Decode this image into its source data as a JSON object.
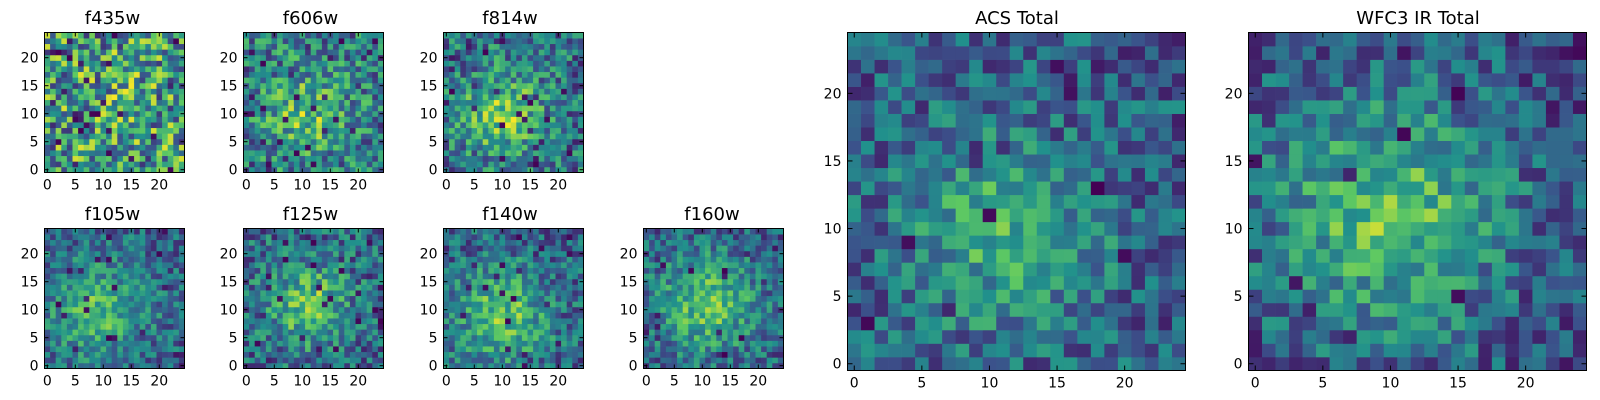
{
  "chart_data": {
    "type": "heatmap",
    "colormap": "viridis",
    "grid": false,
    "panels": [
      {
        "title": "f435w",
        "nx": 25,
        "ny": 25,
        "xlim": [
          -0.5,
          24.5
        ],
        "ylim": [
          -0.5,
          24.5
        ],
        "xticks": [
          0,
          5,
          10,
          15,
          20
        ],
        "yticks": [
          0,
          5,
          10,
          15,
          20
        ],
        "seed": 11,
        "blob": 0.05,
        "center": [
          12,
          12
        ],
        "sigma": 6,
        "noise": 0.55,
        "spread": 0.4,
        "lowfrac": 0.05
      },
      {
        "title": "f606w",
        "nx": 25,
        "ny": 25,
        "xlim": [
          -0.5,
          24.5
        ],
        "ylim": [
          -0.5,
          24.5
        ],
        "xticks": [
          0,
          5,
          10,
          15,
          20
        ],
        "yticks": [
          0,
          5,
          10,
          15,
          20
        ],
        "seed": 23,
        "blob": 0.3,
        "center": [
          11,
          10
        ],
        "sigma": 5,
        "noise": 0.42,
        "spread": 0.3,
        "lowfrac": 0.04
      },
      {
        "title": "f814w",
        "nx": 25,
        "ny": 25,
        "xlim": [
          -0.5,
          24.5
        ],
        "ylim": [
          -0.5,
          24.5
        ],
        "xticks": [
          0,
          5,
          10,
          15,
          20
        ],
        "yticks": [
          0,
          5,
          10,
          15,
          20
        ],
        "seed": 37,
        "blob": 0.4,
        "center": [
          10,
          10
        ],
        "sigma": 5,
        "noise": 0.38,
        "spread": 0.28,
        "lowfrac": 0.04
      },
      {
        "title": "f105w",
        "nx": 25,
        "ny": 25,
        "xlim": [
          -0.5,
          24.5
        ],
        "ylim": [
          -0.5,
          24.5
        ],
        "xticks": [
          0,
          5,
          10,
          15,
          20
        ],
        "yticks": [
          0,
          5,
          10,
          15,
          20
        ],
        "seed": 41,
        "blob": 0.35,
        "center": [
          9,
          10
        ],
        "sigma": 6,
        "noise": 0.32,
        "spread": 0.22,
        "lowfrac": 0.03
      },
      {
        "title": "f125w",
        "nx": 25,
        "ny": 25,
        "xlim": [
          -0.5,
          24.5
        ],
        "ylim": [
          -0.5,
          24.5
        ],
        "xticks": [
          0,
          5,
          10,
          15,
          20
        ],
        "yticks": [
          0,
          5,
          10,
          15,
          20
        ],
        "seed": 53,
        "blob": 0.4,
        "center": [
          11,
          11
        ],
        "sigma": 5,
        "noise": 0.34,
        "spread": 0.25,
        "lowfrac": 0.05
      },
      {
        "title": "f140w",
        "nx": 25,
        "ny": 25,
        "xlim": [
          -0.5,
          24.5
        ],
        "ylim": [
          -0.5,
          24.5
        ],
        "xticks": [
          0,
          5,
          10,
          15,
          20
        ],
        "yticks": [
          0,
          5,
          10,
          15,
          20
        ],
        "seed": 67,
        "blob": 0.4,
        "center": [
          10,
          9
        ],
        "sigma": 6,
        "noise": 0.32,
        "spread": 0.23,
        "lowfrac": 0.04
      },
      {
        "title": "f160w",
        "nx": 25,
        "ny": 25,
        "xlim": [
          -0.5,
          24.5
        ],
        "ylim": [
          -0.5,
          24.5
        ],
        "xticks": [
          0,
          5,
          10,
          15,
          20
        ],
        "yticks": [
          0,
          5,
          10,
          15,
          20
        ],
        "seed": 79,
        "blob": 0.4,
        "center": [
          11,
          11
        ],
        "sigma": 6,
        "noise": 0.32,
        "spread": 0.22,
        "lowfrac": 0.04
      },
      {
        "title": "ACS Total",
        "nx": 25,
        "ny": 25,
        "xlim": [
          -0.5,
          24.5
        ],
        "ylim": [
          -0.5,
          24.5
        ],
        "xticks": [
          0,
          5,
          10,
          15,
          20
        ],
        "yticks": [
          0,
          5,
          10,
          15,
          20
        ],
        "seed": 97,
        "blob": 0.35,
        "center": [
          11,
          10
        ],
        "sigma": 5,
        "noise": 0.3,
        "spread": 0.22,
        "lowfrac": 0.03
      },
      {
        "title": "WFC3 IR Total",
        "nx": 25,
        "ny": 25,
        "xlim": [
          -0.5,
          24.5
        ],
        "ylim": [
          -0.5,
          24.5
        ],
        "xticks": [
          0,
          5,
          10,
          15,
          20
        ],
        "yticks": [
          0,
          5,
          10,
          15,
          20
        ],
        "seed": 131,
        "blob": 0.45,
        "center": [
          10,
          11
        ],
        "sigma": 6,
        "noise": 0.26,
        "spread": 0.22,
        "lowfrac": 0.03
      }
    ]
  }
}
